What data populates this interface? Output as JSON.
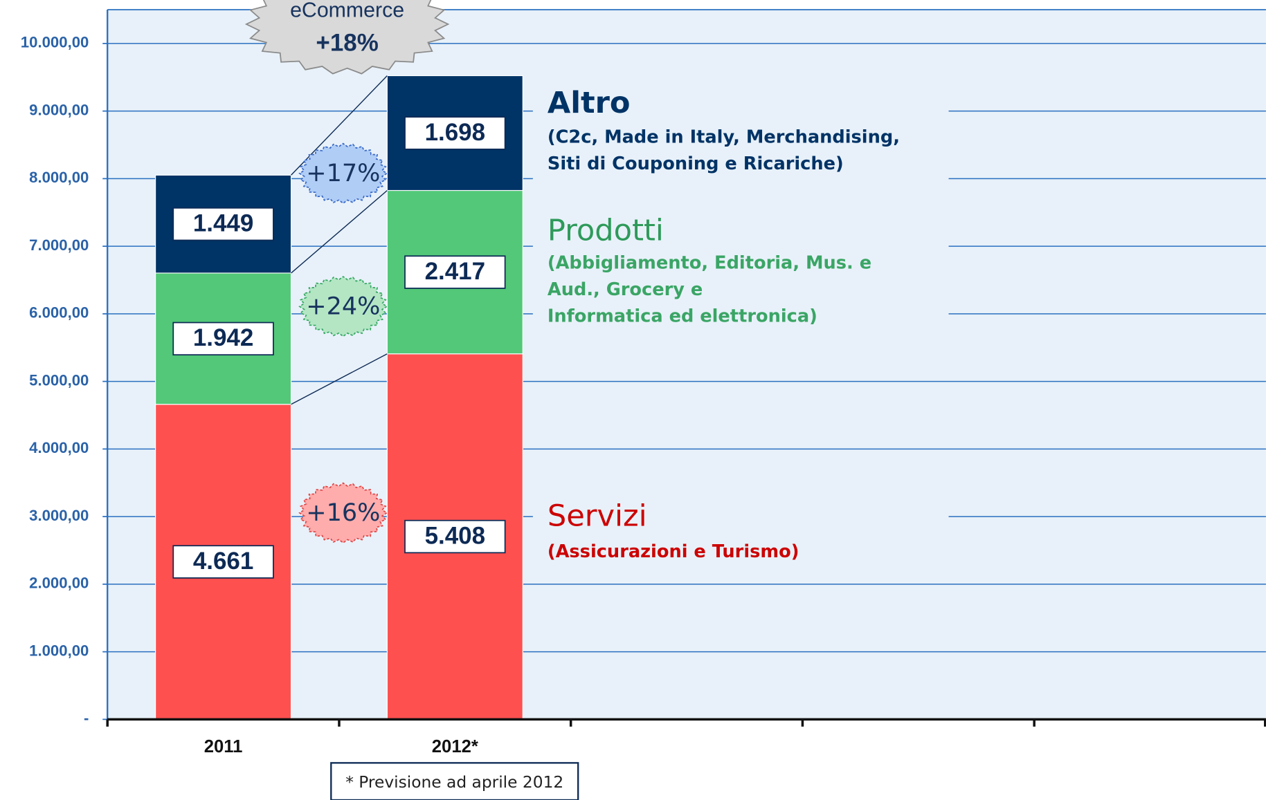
{
  "chart_data": {
    "type": "stacked_bar",
    "categories": [
      "2011",
      "2012*",
      null,
      null,
      null
    ],
    "series": [
      {
        "name": "Servizi",
        "color": "#ff5050",
        "text_color": "#cc0000",
        "values": [
          4661,
          5408,
          null,
          null,
          null
        ],
        "value_labels": [
          "4.661",
          "5.408",
          null,
          null,
          null
        ],
        "description": [
          "(Assicurazioni e Turismo)"
        ]
      },
      {
        "name": "Prodotti",
        "color": "#52c878",
        "text_color": "#2e9a5a",
        "values": [
          1942,
          2417,
          null,
          null,
          null
        ],
        "value_labels": [
          "1.942",
          "2.417",
          null,
          null,
          null
        ],
        "description": [
          "(Abbigliamento, Editoria, Mus. e",
          "Aud., Grocery e",
          "Informatica ed elettronica)"
        ]
      },
      {
        "name": "Altro",
        "color": "#003366",
        "text_color": "#003366",
        "values": [
          1449,
          1698,
          null,
          null,
          null
        ],
        "value_labels": [
          "1.449",
          "1.698",
          null,
          null,
          null
        ],
        "description": [
          "(C2c, Made in Italy, Merchandising,",
          "Siti di Couponing e Ricariche)"
        ]
      }
    ],
    "growth_labels": [
      "+16%",
      "+24%",
      "+17%"
    ],
    "total_badge": {
      "title": "eCommerce",
      "growth": "+18%"
    },
    "note": "* Previsione ad aprile 2012",
    "ylim": [
      0,
      10500
    ],
    "yticks": [
      {
        "value": 0,
        "label": "-"
      },
      {
        "value": 1000,
        "label": "1.000,00"
      },
      {
        "value": 2000,
        "label": "2.000,00"
      },
      {
        "value": 3000,
        "label": "3.000,00"
      },
      {
        "value": 4000,
        "label": "4.000,00"
      },
      {
        "value": 5000,
        "label": "5.000,00"
      },
      {
        "value": 6000,
        "label": "6.000,00"
      },
      {
        "value": 7000,
        "label": "7.000,00"
      },
      {
        "value": 8000,
        "label": "8.000,00"
      },
      {
        "value": 9000,
        "label": "9.000,00"
      },
      {
        "value": 10000,
        "label": "10.000,00"
      }
    ],
    "grid": true
  }
}
